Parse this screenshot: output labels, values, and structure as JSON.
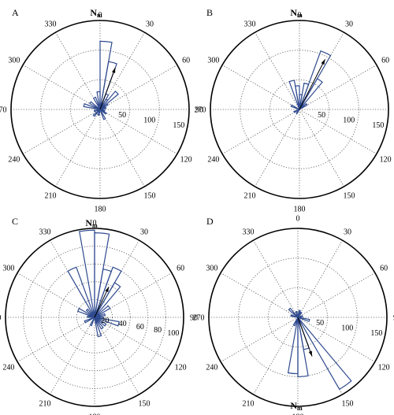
{
  "colors": {
    "petal": "#2f4a8f",
    "frame": "#000000",
    "grid": "#555555",
    "arrow": "#000000"
  },
  "chart_data": [
    {
      "type": "rose",
      "panel": "A",
      "north_label": {
        "main": "N",
        "sub": "m"
      },
      "north_at": "top",
      "angle_ticks": [
        0,
        30,
        60,
        90,
        120,
        150,
        180,
        210,
        240,
        270,
        300,
        330
      ],
      "angle_labels": [
        "0",
        "30",
        "60",
        "90",
        "120",
        "150",
        "180",
        "210",
        "240",
        "270",
        "300",
        "330"
      ],
      "rmax": 150,
      "rings": [
        50,
        100,
        150
      ],
      "ring_labels": [
        "50",
        "100",
        "150"
      ],
      "bin_width_deg": 10,
      "petals": [
        {
          "center": 5,
          "value": 115
        },
        {
          "center": 15,
          "value": 82
        },
        {
          "center": 25,
          "value": 28
        },
        {
          "center": 35,
          "value": 20
        },
        {
          "center": 45,
          "value": 40
        },
        {
          "center": 55,
          "value": 15
        },
        {
          "center": 75,
          "value": 10
        },
        {
          "center": 105,
          "value": 8
        },
        {
          "center": 125,
          "value": 12
        },
        {
          "center": 155,
          "value": 18
        },
        {
          "center": 195,
          "value": 10
        },
        {
          "center": 225,
          "value": 15
        },
        {
          "center": 255,
          "value": 10
        },
        {
          "center": 285,
          "value": 28
        },
        {
          "center": 305,
          "value": 20
        },
        {
          "center": 335,
          "value": 22
        },
        {
          "center": 355,
          "value": 30
        }
      ],
      "mean_direction": 20,
      "mean_length": 75
    },
    {
      "type": "rose",
      "panel": "B",
      "north_label": {
        "main": "N",
        "sub": "m"
      },
      "north_at": "top",
      "angle_ticks": [
        0,
        30,
        60,
        90,
        120,
        150,
        180,
        210,
        240,
        270,
        300,
        330
      ],
      "angle_labels": [
        "0",
        "30",
        "60",
        "90",
        "120",
        "150",
        "180",
        "210",
        "240",
        "270",
        "300",
        "330"
      ],
      "rmax": 150,
      "rings": [
        50,
        100,
        150
      ],
      "ring_labels": [
        "50",
        "100",
        "150"
      ],
      "bin_width_deg": 10,
      "petals": [
        {
          "center": 5,
          "value": 25
        },
        {
          "center": 15,
          "value": 45
        },
        {
          "center": 25,
          "value": 105
        },
        {
          "center": 35,
          "value": 60
        },
        {
          "center": 55,
          "value": 15
        },
        {
          "center": 215,
          "value": 8
        },
        {
          "center": 245,
          "value": 10
        },
        {
          "center": 295,
          "value": 15
        },
        {
          "center": 345,
          "value": 50
        },
        {
          "center": 355,
          "value": 40
        }
      ],
      "mean_direction": 27,
      "mean_length": 95
    },
    {
      "type": "rose",
      "panel": "C",
      "north_label": {
        "main": "N",
        "sub": "m"
      },
      "north_at": "top",
      "angle_ticks": [
        0,
        30,
        60,
        90,
        120,
        150,
        180,
        210,
        240,
        270,
        300,
        330
      ],
      "angle_labels": [
        "0",
        "30",
        "60",
        "90",
        "120",
        "150",
        "180",
        "210",
        "240",
        "270",
        "300",
        "330"
      ],
      "rmax": 100,
      "rings": [
        20,
        40,
        60,
        80,
        100
      ],
      "ring_labels": [
        "20",
        "40",
        "60",
        "80",
        "100"
      ],
      "bin_width_deg": 10,
      "petals": [
        {
          "center": 5,
          "value": 95
        },
        {
          "center": 15,
          "value": 55
        },
        {
          "center": 25,
          "value": 60
        },
        {
          "center": 35,
          "value": 45
        },
        {
          "center": 55,
          "value": 20
        },
        {
          "center": 75,
          "value": 12
        },
        {
          "center": 95,
          "value": 10
        },
        {
          "center": 105,
          "value": 28
        },
        {
          "center": 125,
          "value": 15
        },
        {
          "center": 145,
          "value": 15
        },
        {
          "center": 165,
          "value": 22
        },
        {
          "center": 205,
          "value": 10
        },
        {
          "center": 245,
          "value": 12
        },
        {
          "center": 275,
          "value": 8
        },
        {
          "center": 295,
          "value": 20
        },
        {
          "center": 315,
          "value": 12
        },
        {
          "center": 335,
          "value": 60
        },
        {
          "center": 355,
          "value": 98
        }
      ],
      "mean_direction": 25,
      "mean_length": 38
    },
    {
      "type": "rose",
      "panel": "D",
      "north_label": {
        "main": "N",
        "sub": "m"
      },
      "north_at": "bottom",
      "angle_ticks": [
        0,
        30,
        60,
        90,
        120,
        150,
        180,
        210,
        240,
        270,
        300,
        330
      ],
      "angle_labels": [
        "0",
        "30",
        "60",
        "90",
        "120",
        "150",
        "180",
        "210",
        "240",
        "270",
        "300",
        "330"
      ],
      "rmax": 150,
      "rings": [
        50,
        100,
        150
      ],
      "ring_labels": [
        "50",
        "100",
        "150"
      ],
      "bin_width_deg": 10,
      "petals": [
        {
          "center": 15,
          "value": 12
        },
        {
          "center": 35,
          "value": 10
        },
        {
          "center": 75,
          "value": 8
        },
        {
          "center": 105,
          "value": 20
        },
        {
          "center": 145,
          "value": 140
        },
        {
          "center": 165,
          "value": 55
        },
        {
          "center": 175,
          "value": 100
        },
        {
          "center": 185,
          "value": 95
        },
        {
          "center": 205,
          "value": 15
        },
        {
          "center": 285,
          "value": 12
        },
        {
          "center": 315,
          "value": 20
        },
        {
          "center": 345,
          "value": 10
        }
      ],
      "mean_direction": 160,
      "mean_length": 70
    }
  ]
}
